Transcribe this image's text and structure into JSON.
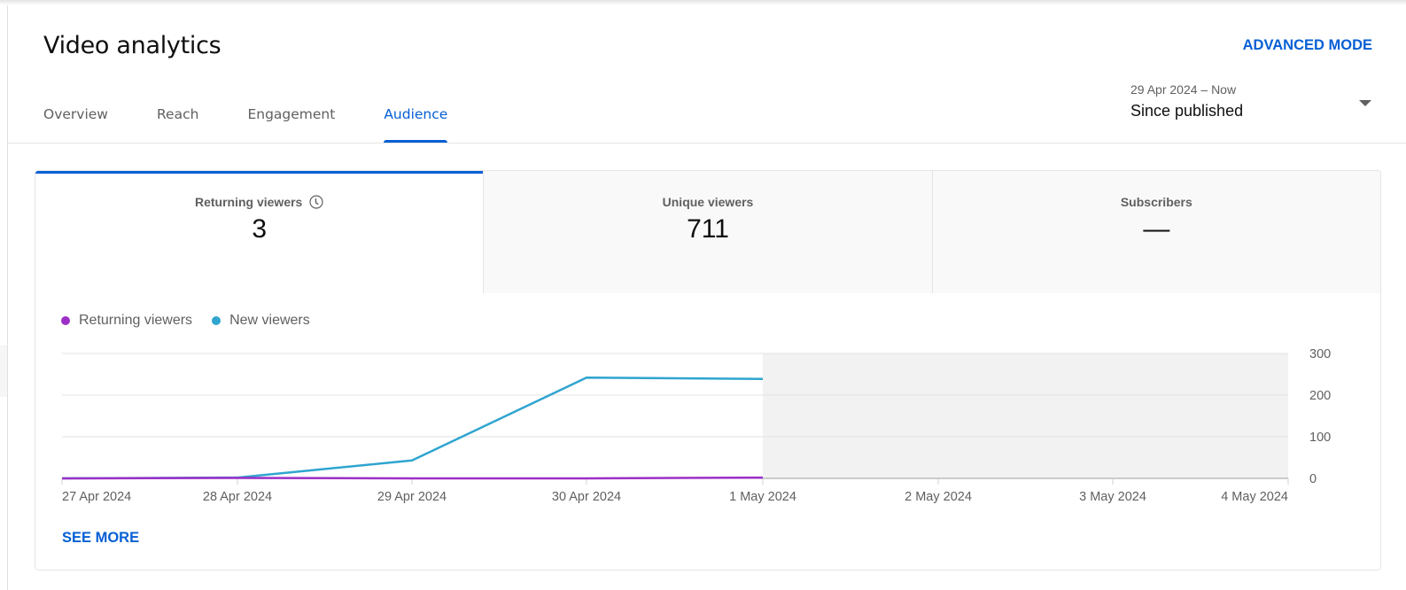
{
  "header": {
    "title": "Video analytics",
    "advanced_mode": "ADVANCED MODE"
  },
  "tabs": [
    {
      "label": "Overview",
      "active": false
    },
    {
      "label": "Reach",
      "active": false
    },
    {
      "label": "Engagement",
      "active": false
    },
    {
      "label": "Audience",
      "active": true
    }
  ],
  "date_picker": {
    "range": "29 Apr 2024 – Now",
    "label": "Since published"
  },
  "metrics": [
    {
      "label": "Returning viewers",
      "value": "3",
      "icon": "clock-icon",
      "selected": true
    },
    {
      "label": "Unique viewers",
      "value": "711",
      "selected": false
    },
    {
      "label": "Subscribers",
      "value": "—",
      "selected": false
    }
  ],
  "legend": [
    {
      "label": "Returning viewers",
      "color": "#9c2fc7"
    },
    {
      "label": "New viewers",
      "color": "#2fa5cf"
    }
  ],
  "see_more": "SEE MORE",
  "colors": {
    "accent": "#065fd4",
    "returning": "#9c2fc7",
    "new": "#2fa5cf",
    "future_shade": "#f2f2f2"
  },
  "chart_data": {
    "type": "line",
    "title": "",
    "xlabel": "",
    "ylabel": "",
    "categories": [
      "27 Apr 2024",
      "28 Apr 2024",
      "29 Apr 2024",
      "30 Apr 2024",
      "1 May 2024",
      "2 May 2024",
      "3 May 2024",
      "4 May 2024"
    ],
    "series": [
      {
        "name": "Returning viewers",
        "color": "#9c2fc7",
        "values": [
          0,
          1,
          0,
          0,
          2,
          null,
          null,
          null
        ]
      },
      {
        "name": "New viewers",
        "color": "#2fa5cf",
        "values": [
          0,
          2,
          43,
          242,
          239,
          null,
          null,
          null
        ]
      }
    ],
    "yticks": [
      "0",
      "100",
      "200",
      "300"
    ],
    "ylim": [
      0,
      300
    ],
    "grid": true,
    "y_axis_position": "right",
    "legend_position": "top-left",
    "shaded_region": {
      "from": "1 May 2024",
      "to": "4 May 2024"
    }
  }
}
